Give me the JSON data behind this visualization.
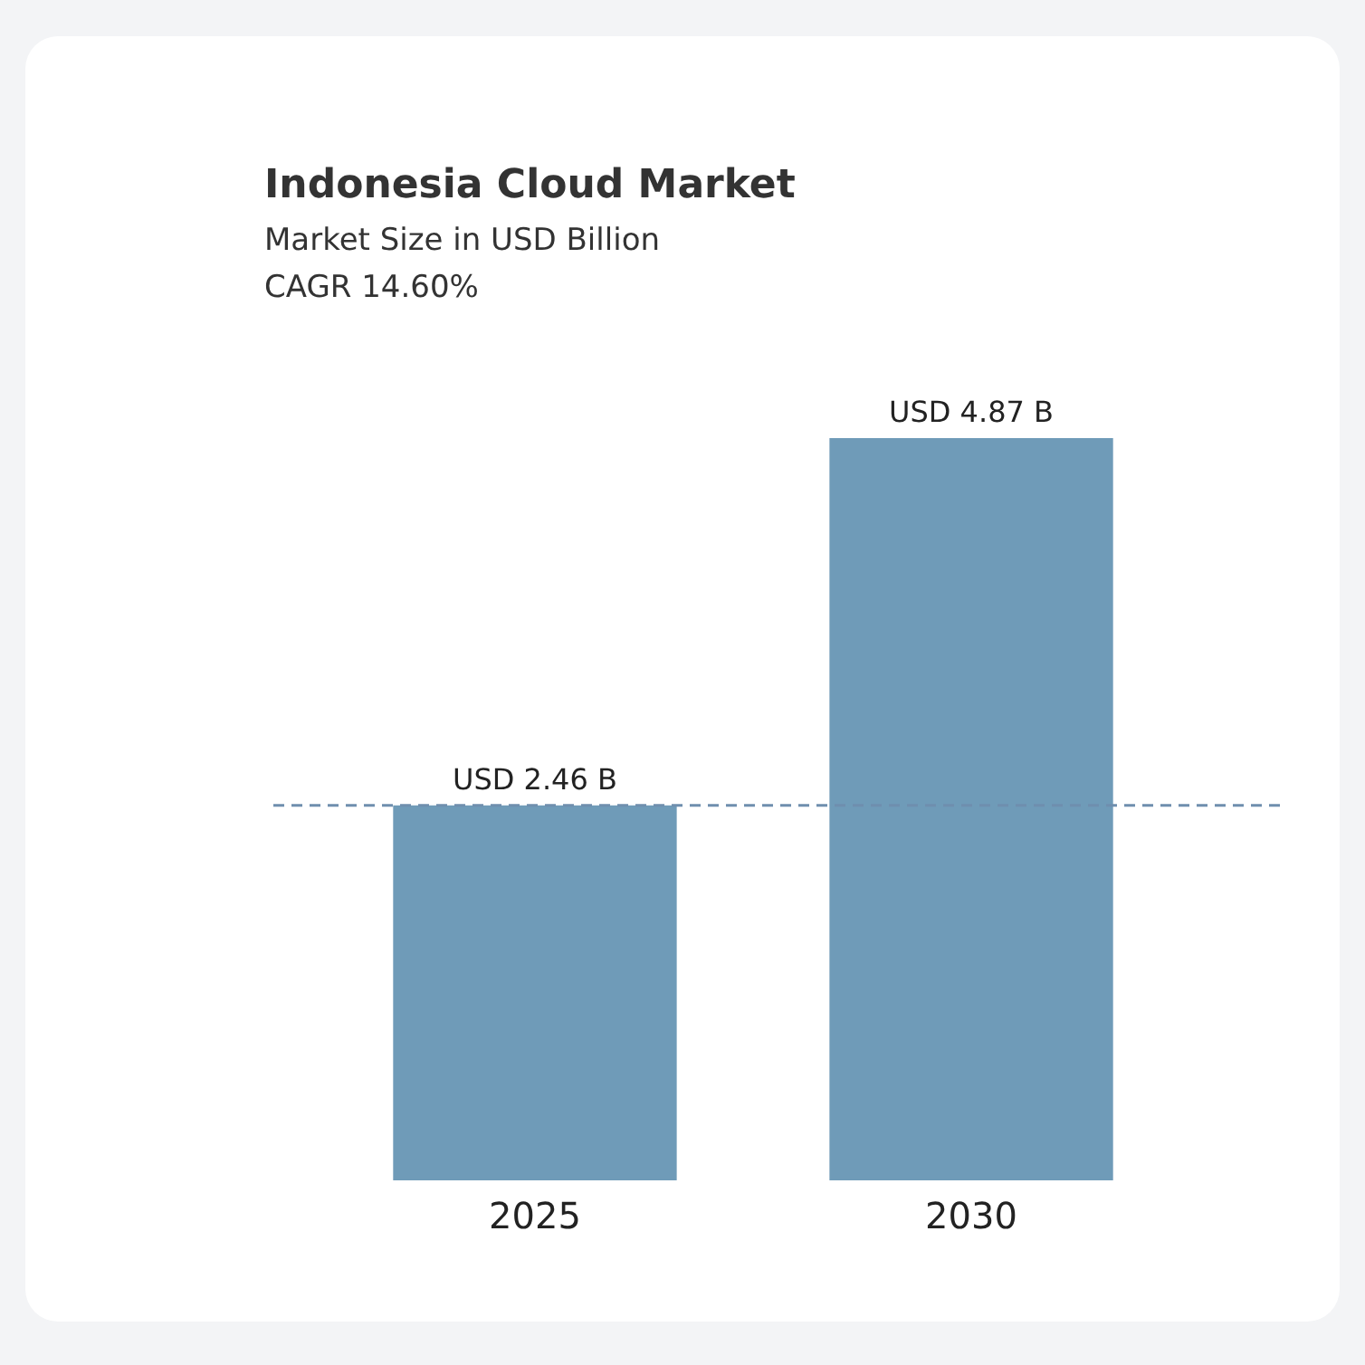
{
  "chart_data": {
    "type": "bar",
    "title": "Indonesia Cloud Market",
    "subtitle": "Market Size in USD Billion",
    "annotations": [
      "CAGR 14.60%"
    ],
    "categories": [
      "2025",
      "2030"
    ],
    "values": [
      2.46,
      4.87
    ],
    "value_labels": [
      "USD 2.46 B",
      "USD 4.87 B"
    ],
    "color": "#6f9bb8",
    "ref_lines": [
      {
        "axis": "y",
        "value": 2.46,
        "color": "#6f8fae",
        "line_style": "dashed"
      }
    ]
  }
}
